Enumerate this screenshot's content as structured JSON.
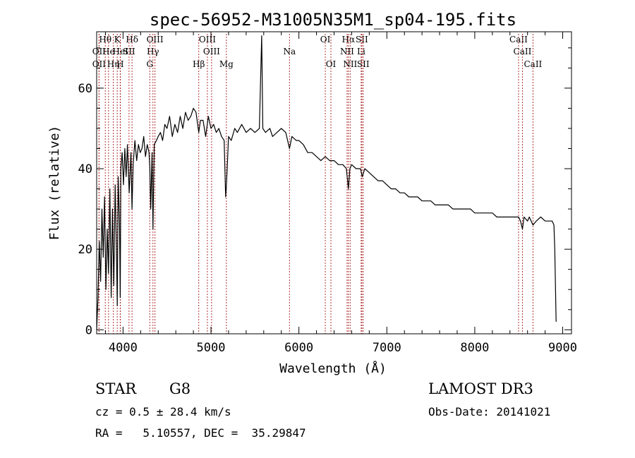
{
  "chart_data": {
    "type": "line",
    "title": "spec-56952-M31005N35M1_sp04-195.fits",
    "xlabel": "Wavelength (Å)",
    "ylabel": "Flux (relative)",
    "xlim": [
      3700,
      9100
    ],
    "ylim": [
      -1,
      74
    ],
    "xticks": [
      4000,
      5000,
      6000,
      7000,
      8000,
      9000
    ],
    "yticks": [
      0,
      20,
      40,
      60
    ],
    "xtick_labels": [
      "4000",
      "5000",
      "6000",
      "7000",
      "8000",
      "9000"
    ],
    "ytick_labels": [
      "0",
      "20",
      "40",
      "60"
    ],
    "series": [
      {
        "name": "spectrum",
        "color": "#000000",
        "x": [
          3700,
          3715,
          3730,
          3745,
          3760,
          3775,
          3790,
          3805,
          3820,
          3835,
          3850,
          3865,
          3880,
          3895,
          3910,
          3925,
          3934,
          3945,
          3960,
          3968,
          3975,
          3990,
          4005,
          4020,
          4035,
          4050,
          4070,
          4090,
          4102,
          4115,
          4135,
          4155,
          4175,
          4195,
          4215,
          4235,
          4255,
          4275,
          4295,
          4305,
          4315,
          4330,
          4340,
          4355,
          4380,
          4400,
          4425,
          4450,
          4475,
          4500,
          4530,
          4560,
          4590,
          4620,
          4650,
          4680,
          4710,
          4740,
          4770,
          4800,
          4830,
          4861,
          4880,
          4910,
          4940,
          4970,
          5000,
          5030,
          5060,
          5090,
          5120,
          5150,
          5167,
          5173,
          5184,
          5200,
          5230,
          5270,
          5300,
          5350,
          5400,
          5450,
          5500,
          5550,
          5577,
          5590,
          5620,
          5670,
          5700,
          5750,
          5800,
          5850,
          5893,
          5920,
          5970,
          6000,
          6050,
          6100,
          6150,
          6200,
          6250,
          6300,
          6350,
          6400,
          6450,
          6500,
          6540,
          6563,
          6580,
          6600,
          6650,
          6700,
          6720,
          6750,
          6800,
          6850,
          6900,
          6950,
          7000,
          7050,
          7100,
          7150,
          7200,
          7250,
          7300,
          7350,
          7400,
          7450,
          7500,
          7550,
          7600,
          7650,
          7700,
          7750,
          7800,
          7850,
          7900,
          7950,
          8000,
          8050,
          8100,
          8150,
          8200,
          8250,
          8300,
          8350,
          8400,
          8450,
          8498,
          8520,
          8542,
          8560,
          8600,
          8620,
          8662,
          8700,
          8750,
          8800,
          8850,
          8880,
          8900,
          8910,
          8925
        ],
        "values": [
          0,
          8,
          22,
          12,
          30,
          18,
          33,
          10,
          25,
          14,
          35,
          8,
          30,
          11,
          36,
          20,
          6,
          38,
          26,
          8,
          40,
          44,
          36,
          45,
          38,
          46,
          34,
          44,
          30,
          41,
          47,
          42,
          46,
          44,
          45,
          48,
          43,
          46,
          44,
          40,
          30,
          44,
          25,
          46,
          47,
          48,
          49,
          47,
          51,
          50,
          53,
          48,
          51,
          49,
          53,
          50,
          54,
          52,
          53,
          55,
          54,
          49,
          52,
          52,
          48,
          53,
          50,
          51,
          49,
          50,
          48,
          47,
          33,
          35,
          40,
          48,
          47,
          50,
          49,
          51,
          49,
          50,
          49,
          50,
          73,
          50,
          49,
          50,
          48,
          49,
          50,
          49,
          45,
          48,
          47,
          47,
          46,
          44,
          44,
          43,
          42,
          43,
          42,
          42,
          41,
          41,
          40,
          35,
          40,
          41,
          40,
          40,
          38,
          40,
          39,
          38,
          37,
          37,
          36,
          35,
          35,
          34,
          34,
          33,
          33,
          33,
          32,
          32,
          32,
          31,
          31,
          31,
          31,
          30,
          30,
          30,
          30,
          30,
          29,
          29,
          29,
          29,
          29,
          28,
          28,
          28,
          28,
          28,
          28,
          27,
          25,
          28,
          27,
          28,
          26,
          27,
          28,
          27,
          27,
          27,
          26,
          20,
          2
        ]
      }
    ],
    "line_markers": [
      {
        "name": "Hθ",
        "x": 3798,
        "row": 1
      },
      {
        "name": "OII",
        "x": 3727,
        "row": 2
      },
      {
        "name": "OII",
        "x": 3727,
        "row": 3
      },
      {
        "name": "He",
        "x": 3835,
        "row": 2
      },
      {
        "name": "Hη",
        "x": 3889,
        "row": 3
      },
      {
        "name": "K",
        "x": 3934,
        "row": 1
      },
      {
        "name": "HeI",
        "x": 3970,
        "row": 2
      },
      {
        "name": "H",
        "x": 3968,
        "row": 3
      },
      {
        "name": "SII",
        "x": 4068,
        "row": 2
      },
      {
        "name": "Hδ",
        "x": 4102,
        "row": 1
      },
      {
        "name": "OIII",
        "x": 4363,
        "row": 1
      },
      {
        "name": "Hγ",
        "x": 4340,
        "row": 2
      },
      {
        "name": "G",
        "x": 4304,
        "row": 3
      },
      {
        "name": "Hβ",
        "x": 4861,
        "row": 3
      },
      {
        "name": "OIII",
        "x": 4959,
        "row": 1
      },
      {
        "name": "OIII",
        "x": 5007,
        "row": 2
      },
      {
        "name": "Mg",
        "x": 5175,
        "row": 3
      },
      {
        "name": "Na",
        "x": 5893,
        "row": 2
      },
      {
        "name": "OI",
        "x": 6300,
        "row": 1
      },
      {
        "name": "OI",
        "x": 6364,
        "row": 3
      },
      {
        "name": "Hα",
        "x": 6563,
        "row": 1
      },
      {
        "name": "NII",
        "x": 6548,
        "row": 2
      },
      {
        "name": "NII",
        "x": 6583,
        "row": 3
      },
      {
        "name": "SII",
        "x": 6716,
        "row": 1
      },
      {
        "name": "Li",
        "x": 6708,
        "row": 2
      },
      {
        "name": "SII",
        "x": 6731,
        "row": 3
      },
      {
        "name": "CaII",
        "x": 8498,
        "row": 1
      },
      {
        "name": "CaII",
        "x": 8542,
        "row": 2
      },
      {
        "name": "CaII",
        "x": 8662,
        "row": 3
      }
    ],
    "marker_color": "#b03030"
  },
  "info": {
    "object_class": "STAR",
    "subclass": "G8",
    "survey": "LAMOST DR3",
    "velocity": "cz = 0.5 ± 28.4 km/s",
    "obs_date": "Obs-Date: 20141021",
    "coords": "RA =   5.10557, DEC =  35.29847"
  }
}
